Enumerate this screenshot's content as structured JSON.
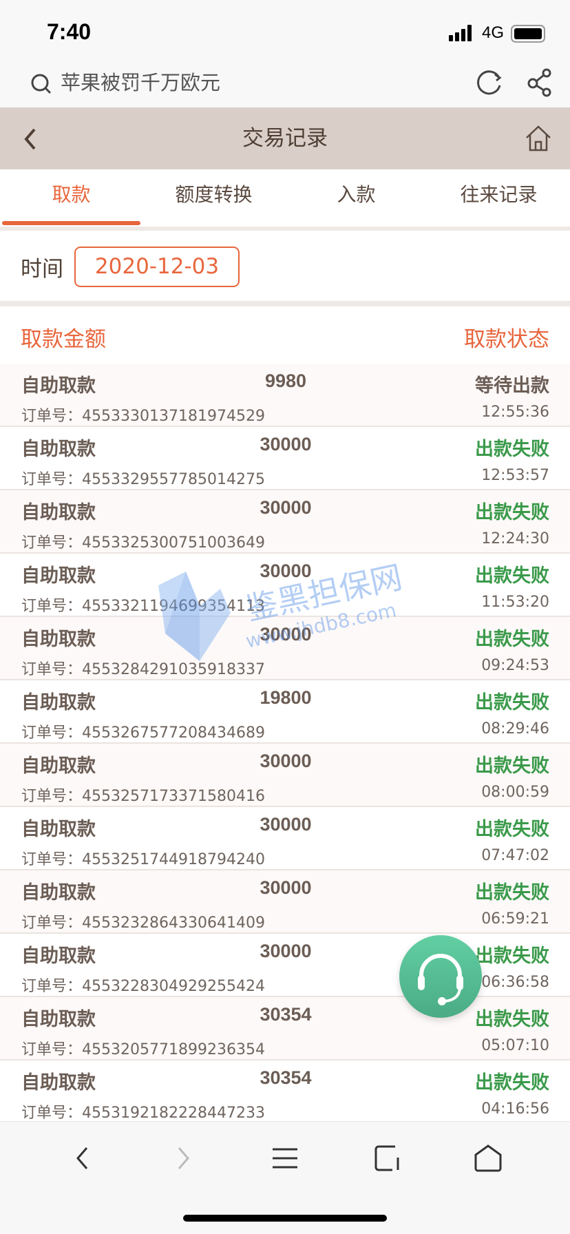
{
  "status_bar": {
    "time": "7:40",
    "network": "4G"
  },
  "browser": {
    "search_text": "苹果被罚千万欧元"
  },
  "nav": {
    "title": "交易记录"
  },
  "tabs": [
    {
      "label": "取款",
      "active": true
    },
    {
      "label": "额度转换"
    },
    {
      "label": "入款"
    },
    {
      "label": "往来记录"
    }
  ],
  "filter": {
    "time_label": "时间",
    "date_value": "2020-12-03"
  },
  "table_header": {
    "amount_label": "取款金额",
    "status_label": "取款状态"
  },
  "order_prefix": "订单号：",
  "colors": {
    "accent": "#e8663c",
    "fail": "#3a9a4a",
    "pending": "#6b5d55",
    "nav_bg": "#d9cec8"
  },
  "records": [
    {
      "type": "自助取款",
      "amount": "9980",
      "status": "等待出款",
      "order": "4553330137181974529",
      "time": "12:55:36",
      "state": "pending"
    },
    {
      "type": "自助取款",
      "amount": "30000",
      "status": "出款失败",
      "order": "4553329557785014275",
      "time": "12:53:57",
      "state": "fail"
    },
    {
      "type": "自助取款",
      "amount": "30000",
      "status": "出款失败",
      "order": "4553325300751003649",
      "time": "12:24:30",
      "state": "fail"
    },
    {
      "type": "自助取款",
      "amount": "30000",
      "status": "出款失败",
      "order": "4553321194699354113",
      "time": "11:53:20",
      "state": "fail"
    },
    {
      "type": "自助取款",
      "amount": "30000",
      "status": "出款失败",
      "order": "4553284291035918337",
      "time": "09:24:53",
      "state": "fail"
    },
    {
      "type": "自助取款",
      "amount": "19800",
      "status": "出款失败",
      "order": "4553267577208434689",
      "time": "08:29:46",
      "state": "fail"
    },
    {
      "type": "自助取款",
      "amount": "30000",
      "status": "出款失败",
      "order": "4553257173371580416",
      "time": "08:00:59",
      "state": "fail"
    },
    {
      "type": "自助取款",
      "amount": "30000",
      "status": "出款失败",
      "order": "4553251744918794240",
      "time": "07:47:02",
      "state": "fail"
    },
    {
      "type": "自助取款",
      "amount": "30000",
      "status": "出款失败",
      "order": "4553232864330641409",
      "time": "06:59:21",
      "state": "fail"
    },
    {
      "type": "自助取款",
      "amount": "30000",
      "status": "出款失败",
      "order": "4553228304929255424",
      "time": "06:36:58",
      "state": "fail"
    },
    {
      "type": "自助取款",
      "amount": "30354",
      "status": "出款失败",
      "order": "4553205771899236354",
      "time": "05:07:10",
      "state": "fail"
    },
    {
      "type": "自助取款",
      "amount": "30354",
      "status": "出款失败",
      "order": "4553192182228447233",
      "time": "04:16:56",
      "state": "fail"
    }
  ],
  "watermark": {
    "name": "鉴黑担保网",
    "url": "www.jhdb8.com"
  }
}
